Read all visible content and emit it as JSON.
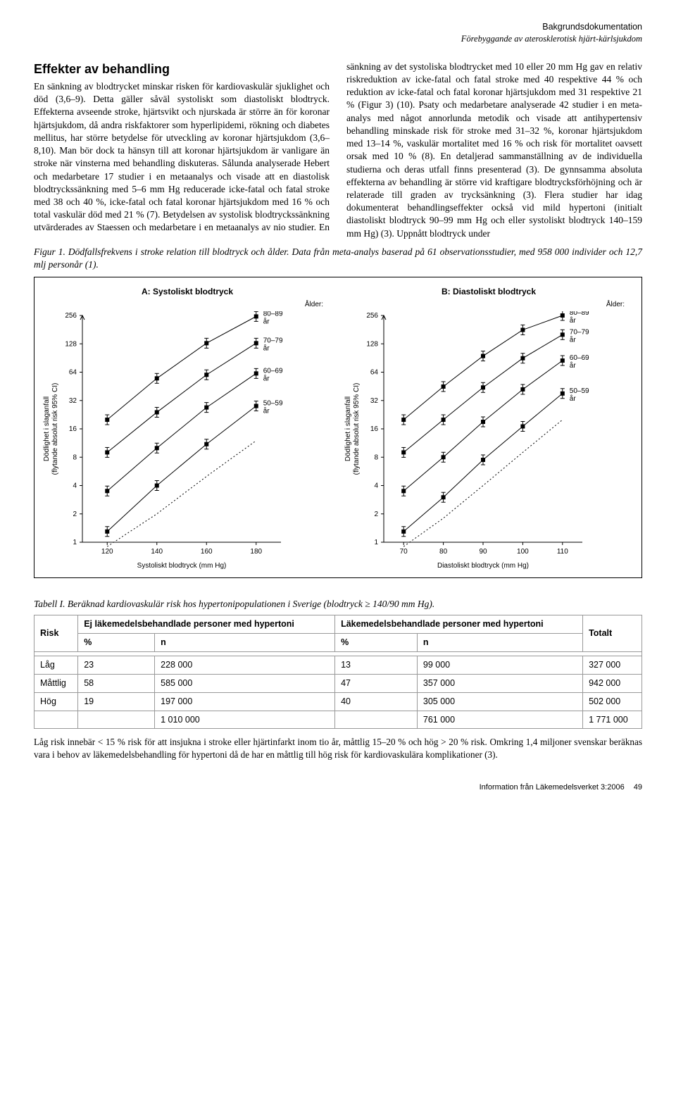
{
  "header": {
    "line1": "Bakgrundsdokumentation",
    "line2": "Förebyggande av aterosklerotisk hjärt-kärlsjukdom"
  },
  "section_title": "Effekter av behandling",
  "body_text": "En sänkning av blodtrycket minskar risken för kardiovaskulär sjuklighet och död (3,6–9). Detta gäller såväl systoliskt som diastoliskt blodtryck. Effekterna avseende stroke, hjärtsvikt och njurskada är större än för koronar hjärtsjukdom, då andra riskfaktorer som hyperlipidemi, rökning och diabetes mellitus, har större betydelse för utveckling av koronar hjärtsjukdom (3,6–8,10). Man bör dock ta hänsyn till att koronar hjärtsjukdom är vanligare än stroke när vinsterna med behandling diskuteras. Sålunda analyserade Hebert och medarbetare 17 studier i en metaanalys och visade att en diastolisk blodtryckssänkning med 5–6 mm Hg reducerade icke-fatal och fatal stroke med 38 och 40 %, icke-fatal och fatal koronar hjärtsjukdom med 16 % och total vaskulär död med 21 % (7). Betydelsen av systolisk blodtryckssänkning utvärderades av Staessen och medarbetare i en metaanalys av nio studier. En sänkning av det systoliska blodtrycket med 10 eller 20 mm Hg gav en relativ riskreduktion av icke-fatal och fatal stroke med 40 respektive 44 % och reduktion av icke-fatal och fatal koronar hjärtsjukdom med 31 respektive 21 % (Figur 3) (10). Psaty och medarbetare analyserade 42 studier i en meta-analys med något annorlunda metodik och visade att antihypertensiv behandling minskade risk för stroke med 31–32 %, koronar hjärtsjukdom med 13–14 %, vaskulär mortalitet med 16 % och risk för mortalitet oavsett orsak med 10 % (8). En detaljerad sammanställning av de individuella studierna och deras utfall finns presenterad (3). De gynnsamma absoluta effekterna av behandling är större vid kraftigare blodtrycksförhöjning och är relaterade till graden av trycksänkning (3). Flera studier har idag dokumenterat behandlingseffekter också vid mild hypertoni (initialt diastoliskt blodtryck 90–99 mm Hg och eller systoliskt blodtryck 140–159 mm Hg) (3). Uppnått blodtryck under",
  "figure_caption": "Figur 1. Dödfallsfrekvens i stroke relation till blodtryck och ålder. Data från meta-analys baserad på 61 observationsstudier, med 958 000 individer och 12,7 mlj personår (1).",
  "chartA": {
    "title": "A: Systoliskt blodtryck",
    "age_header": "Ålder:",
    "y_label": "Dödlighet i slaganfall\n(flytande absolut risk 95% CI)",
    "x_label": "Systoliskt blodtryck (mm Hg)",
    "y_ticks": [
      1,
      2,
      4,
      8,
      16,
      32,
      64,
      128,
      256
    ],
    "x_ticks": [
      120,
      140,
      160,
      180
    ],
    "x_range": [
      110,
      190
    ],
    "groups": [
      {
        "label": "80–89 år",
        "points": [
          [
            120,
            20
          ],
          [
            140,
            55
          ],
          [
            160,
            130
          ],
          [
            180,
            250
          ]
        ]
      },
      {
        "label": "70–79 år",
        "points": [
          [
            120,
            9
          ],
          [
            140,
            24
          ],
          [
            160,
            60
          ],
          [
            180,
            130
          ]
        ]
      },
      {
        "label": "60–69 år",
        "points": [
          [
            120,
            3.5
          ],
          [
            140,
            10
          ],
          [
            160,
            27
          ],
          [
            180,
            62
          ]
        ]
      },
      {
        "label": "50–59 år",
        "points": [
          [
            120,
            1.3
          ],
          [
            140,
            4
          ],
          [
            160,
            11
          ],
          [
            180,
            28
          ]
        ]
      }
    ],
    "dotted": {
      "points": [
        [
          120,
          0.9
        ],
        [
          140,
          2
        ],
        [
          160,
          5
        ],
        [
          180,
          12
        ]
      ]
    },
    "colors": {
      "marker": "#000000",
      "line": "#000000",
      "axis": "#000000",
      "text": "#000000"
    }
  },
  "chartB": {
    "title": "B: Diastoliskt blodtryck",
    "age_header": "Ålder:",
    "y_label": "Dödlighet i slaganfall\n(flytande absolut risk 95% CI)",
    "x_label": "Diastoliskt blodtryck (mm Hg)",
    "y_ticks": [
      1,
      2,
      4,
      8,
      16,
      32,
      64,
      128,
      256
    ],
    "x_ticks": [
      70,
      80,
      90,
      100,
      110
    ],
    "x_range": [
      65,
      115
    ],
    "groups": [
      {
        "label": "80–89 år",
        "points": [
          [
            70,
            20
          ],
          [
            80,
            45
          ],
          [
            90,
            95
          ],
          [
            100,
            180
          ],
          [
            110,
            256
          ]
        ]
      },
      {
        "label": "70–79 år",
        "points": [
          [
            70,
            9
          ],
          [
            80,
            20
          ],
          [
            90,
            44
          ],
          [
            100,
            90
          ],
          [
            110,
            160
          ]
        ]
      },
      {
        "label": "60–69 år",
        "points": [
          [
            70,
            3.5
          ],
          [
            80,
            8
          ],
          [
            90,
            19
          ],
          [
            100,
            42
          ],
          [
            110,
            85
          ]
        ]
      },
      {
        "label": "50–59 år",
        "points": [
          [
            70,
            1.3
          ],
          [
            80,
            3
          ],
          [
            90,
            7.5
          ],
          [
            100,
            17
          ],
          [
            110,
            38
          ]
        ]
      }
    ],
    "dotted": {
      "points": [
        [
          70,
          0.9
        ],
        [
          80,
          1.8
        ],
        [
          90,
          4
        ],
        [
          100,
          9
        ],
        [
          110,
          20
        ]
      ]
    },
    "colors": {
      "marker": "#000000",
      "line": "#000000",
      "axis": "#000000",
      "text": "#000000"
    }
  },
  "table_caption": "Tabell I. Beräknad kardiovaskulär risk hos hypertonipopulationen i Sverige (blodtryck ≥ 140/90 mm Hg).",
  "table": {
    "headers": {
      "risk": "Risk",
      "col1": "Ej läkemedelsbehandlade personer med hypertoni",
      "col2": "Läkemedelsbehandlade personer med hypertoni",
      "col3": "Totalt",
      "pct": "%",
      "n": "n"
    },
    "rows": [
      {
        "label": "Låg",
        "p1": "23",
        "n1": "228 000",
        "p2": "13",
        "n2": "99 000",
        "tot": "327 000"
      },
      {
        "label": "Måttlig",
        "p1": "58",
        "n1": "585 000",
        "p2": "47",
        "n2": "357 000",
        "tot": "942 000"
      },
      {
        "label": "Hög",
        "p1": "19",
        "n1": "197 000",
        "p2": "40",
        "n2": "305 000",
        "tot": "502 000"
      }
    ],
    "totals": {
      "n1": "1 010 000",
      "n2": "761 000",
      "tot": "1 771 000"
    }
  },
  "table_note": "Låg risk innebär < 15 % risk för att insjukna i stroke eller hjärtinfarkt inom tio år, måttlig 15–20 % och hög > 20 % risk. Omkring 1,4 miljoner svenskar beräknas vara i behov av läkemedelsbehandling för hypertoni då de har en måttlig till hög risk för kardiovaskulära komplikationer (3).",
  "footer": {
    "text": "Information från Läkemedelsverket 3:2006",
    "page": "49"
  }
}
